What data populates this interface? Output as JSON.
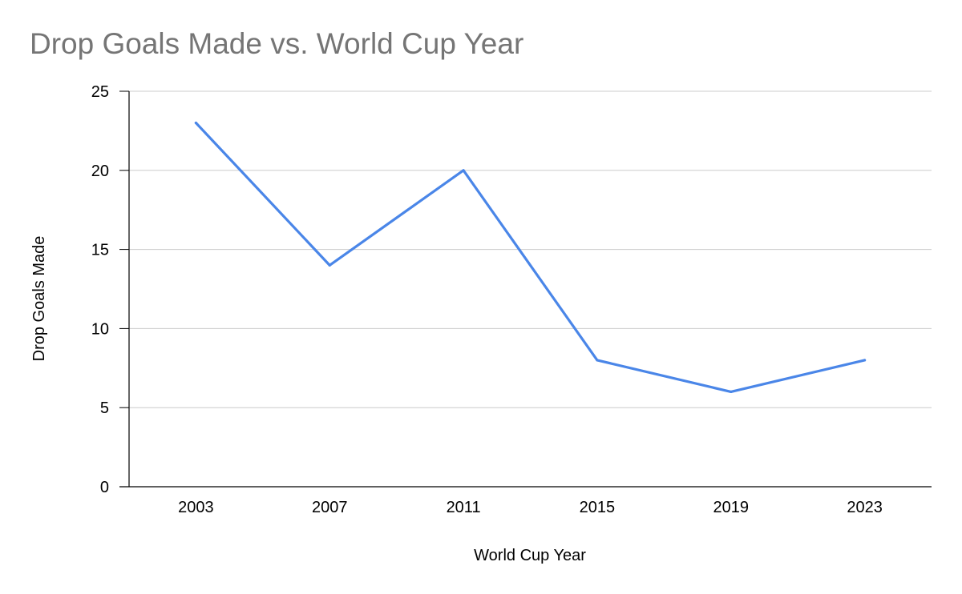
{
  "chart_data": {
    "type": "line",
    "title": "Drop Goals Made vs. World Cup Year",
    "xlabel": "World Cup Year",
    "ylabel": "Drop Goals Made",
    "categories": [
      "2003",
      "2007",
      "2011",
      "2015",
      "2019",
      "2023"
    ],
    "series": [
      {
        "values": [
          23,
          14,
          20,
          8,
          6,
          8
        ]
      }
    ],
    "ylim": [
      0,
      25
    ],
    "yticks": [
      0,
      5,
      10,
      15,
      20,
      25
    ],
    "grid": true,
    "legend": "none",
    "colors": {
      "line": "#4a86e8",
      "grid": "#cccccc",
      "axis": "#000000",
      "title": "#757575"
    }
  }
}
